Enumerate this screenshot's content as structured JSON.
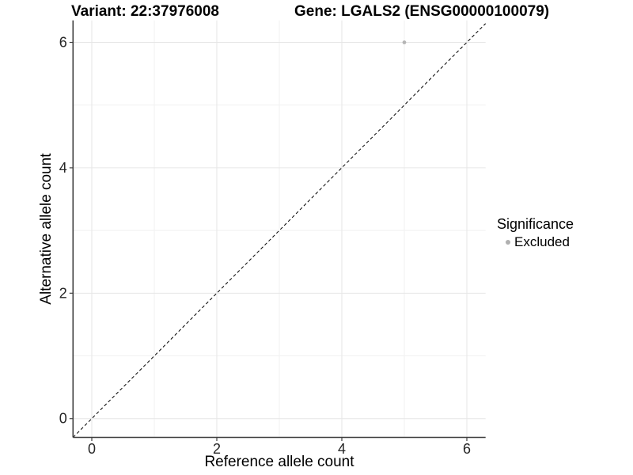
{
  "chart_data": {
    "type": "scatter",
    "title_left": "Variant: 22:37976008",
    "title_right": "Gene: LGALS2 (ENSG00000100079)",
    "xlabel": "Reference allele count",
    "ylabel": "Alternative allele count",
    "xlim": [
      -0.3,
      6.3
    ],
    "ylim": [
      -0.3,
      6.35
    ],
    "x_ticks": [
      0,
      2,
      4,
      6
    ],
    "y_ticks": [
      0,
      2,
      4,
      6
    ],
    "grid": "major gridlines at ticks, minor gridlines at midpoints, light gray on white panel",
    "points": [
      {
        "x": 5,
        "y": 6,
        "series": "Excluded",
        "color": "#b5b5b5"
      }
    ],
    "reference_line": {
      "type": "identity y=x",
      "style": "dashed",
      "color": "#000000"
    },
    "legend": {
      "title": "Significance",
      "position": "right",
      "items": [
        {
          "label": "Excluded",
          "marker": "circle",
          "color": "#b0b0b0"
        }
      ]
    }
  },
  "colors": {
    "background": "#ffffff",
    "grid_major": "#e6e6e6",
    "grid_minor": "#f1f1f1",
    "axis_line": "#3f3f3f",
    "tick_text": "#262626",
    "title_text": "#000000"
  }
}
